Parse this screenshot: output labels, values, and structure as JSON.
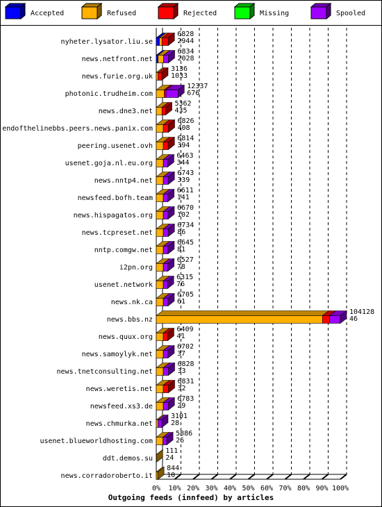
{
  "chart_data": {
    "type": "bar3d",
    "xlabel": "Outgoing feeds (innfeed) by articles",
    "categories": [
      "nyheter.lysator.liu.se",
      "news.netfront.net",
      "news.furie.org.uk",
      "photonic.trudheim.com",
      "news.dne3.net",
      "endofthelinebbs.peers.news.panix.com",
      "peering.usenet.ovh",
      "usenet.goja.nl.eu.org",
      "news.nntp4.net",
      "newsfeed.bofh.team",
      "news.hispagatos.org",
      "news.tcpreset.net",
      "nntp.comgw.net",
      "i2pn.org",
      "usenet.network",
      "news.nk.ca",
      "news.bbs.nz",
      "news.quux.org",
      "news.samoylyk.net",
      "news.tnetconsulting.net",
      "news.weretis.net",
      "newsfeed.xs3.de",
      "news.chmurka.net",
      "usenet.blueworldhosting.com",
      "ddt.demos.su",
      "news.corradoroberto.it"
    ],
    "totals": [
      6828,
      6834,
      3136,
      12337,
      5362,
      6826,
      6814,
      6463,
      6743,
      6611,
      6670,
      6734,
      6645,
      6527,
      6315,
      6705,
      104128,
      6409,
      6702,
      6828,
      6831,
      6783,
      3101,
      5886,
      111,
      844
    ],
    "counts": [
      2944,
      2028,
      1033,
      676,
      435,
      408,
      394,
      344,
      339,
      141,
      102,
      86,
      81,
      78,
      76,
      61,
      46,
      41,
      37,
      33,
      32,
      29,
      28,
      26,
      24,
      10
    ],
    "series": [
      {
        "name": "Accepted",
        "color": "#0000ff",
        "values": [
          1.7,
          1.0,
          0,
          0,
          0,
          0,
          0,
          0,
          0,
          0,
          0,
          0,
          0,
          0,
          0,
          0,
          0,
          0,
          0,
          0,
          0,
          0,
          0,
          0,
          0,
          0
        ]
      },
      {
        "name": "Refused",
        "color": "#ffb000",
        "values": [
          1.4,
          2.9,
          1.0,
          4.3,
          3.1,
          3.8,
          3.8,
          3.8,
          3.8,
          3.8,
          3.8,
          3.8,
          3.8,
          3.8,
          3.8,
          3.8,
          90.3,
          3.8,
          3.8,
          3.8,
          3.8,
          3.8,
          1.0,
          3.6,
          0.1,
          0.8
        ]
      },
      {
        "name": "Rejected",
        "color": "#ff0000",
        "values": [
          3.4,
          0,
          2.0,
          1.0,
          2.0,
          2.8,
          2.7,
          0,
          0,
          0,
          0,
          0,
          0,
          0,
          0,
          0,
          3.8,
          2.4,
          0,
          0,
          2.8,
          0,
          0,
          0,
          0,
          0
        ]
      },
      {
        "name": "Missing",
        "color": "#00ff00",
        "values": [
          0,
          0,
          0,
          0,
          0,
          0,
          0,
          0,
          0,
          0,
          0,
          0,
          0,
          0,
          0,
          0,
          0,
          0,
          0,
          0,
          0,
          0,
          0,
          0,
          0,
          0
        ]
      },
      {
        "name": "Spooled",
        "color": "#a000ff",
        "values": [
          0,
          2.7,
          0,
          6.5,
          0,
          0,
          0,
          2.4,
          2.7,
          2.5,
          2.6,
          2.7,
          2.6,
          2.5,
          2.3,
          2.6,
          5.9,
          0,
          2.6,
          2.8,
          0,
          2.7,
          2.0,
          2.1,
          0,
          0
        ]
      }
    ],
    "xlim": [
      0,
      100
    ],
    "xticks": [
      {
        "value": 0,
        "label": "0%"
      },
      {
        "value": 10,
        "label": "10%"
      },
      {
        "value": 20,
        "label": "20%"
      },
      {
        "value": 30,
        "label": "30%"
      },
      {
        "value": 40,
        "label": "40%"
      },
      {
        "value": 50,
        "label": "50%"
      },
      {
        "value": 60,
        "label": "60%"
      },
      {
        "value": 70,
        "label": "70%"
      },
      {
        "value": 80,
        "label": "80%"
      },
      {
        "value": 90,
        "label": "90%"
      },
      {
        "value": 100,
        "label": "100%"
      }
    ],
    "grid": true
  }
}
